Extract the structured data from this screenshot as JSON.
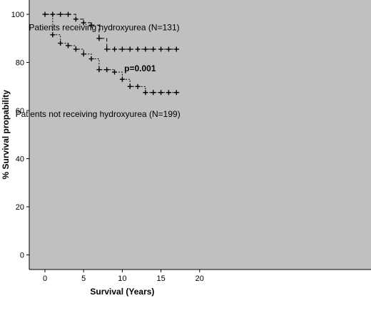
{
  "chart_data": {
    "type": "line",
    "subtype": "kaplan-meier step",
    "xlabel": "Survival (Years)",
    "ylabel": "% Survival propability",
    "xlim": [
      0,
      20
    ],
    "ylim": [
      0,
      100
    ],
    "xticks": [
      0,
      5,
      10,
      15,
      20
    ],
    "yticks": [
      0,
      20,
      40,
      60,
      80,
      100
    ],
    "grid": false,
    "background_color": "#c0c0c0",
    "line_color": "#000000",
    "annotations": [
      {
        "text": "Patients receiving hydroxyurea (N=131)",
        "x": 17.4,
        "y": 94.5,
        "bold": false,
        "anchor": "end"
      },
      {
        "text": "p=0.001",
        "x": 12.3,
        "y": 77.5,
        "bold": true,
        "anchor": "middle"
      },
      {
        "text": "Patients not receiving hydroxyurea (N=199)",
        "x": 17.5,
        "y": 58.5,
        "bold": false,
        "anchor": "end"
      }
    ],
    "series": [
      {
        "name": "Patients receiving hydroxyurea (N=131)",
        "line_style": "dashed",
        "steps": [
          [
            0,
            100
          ],
          [
            4,
            98
          ],
          [
            5,
            96.5
          ],
          [
            6,
            95.5
          ],
          [
            7,
            90
          ],
          [
            8,
            85.5
          ],
          [
            17.5,
            85.5
          ]
        ],
        "censored": [
          [
            0,
            100
          ],
          [
            1,
            100
          ],
          [
            2,
            100
          ],
          [
            3,
            100
          ],
          [
            4,
            98
          ],
          [
            5,
            96.5
          ],
          [
            6,
            95.5
          ],
          [
            7,
            90
          ],
          [
            8,
            85.5
          ],
          [
            9,
            85.5
          ],
          [
            10,
            85.5
          ],
          [
            11,
            85.5
          ],
          [
            12,
            85.5
          ],
          [
            13,
            85.5
          ],
          [
            14,
            85.5
          ],
          [
            15,
            85.5
          ],
          [
            16,
            85.5
          ],
          [
            17,
            85.5
          ]
        ]
      },
      {
        "name": "Patients not receiving hydroxyurea (N=199)",
        "line_style": "dotted",
        "steps": [
          [
            0,
            100
          ],
          [
            1,
            91.5
          ],
          [
            2,
            88
          ],
          [
            3,
            87
          ],
          [
            4,
            85.5
          ],
          [
            5,
            83.5
          ],
          [
            6,
            81.5
          ],
          [
            7,
            77
          ],
          [
            9,
            76
          ],
          [
            10,
            73
          ],
          [
            11,
            70
          ],
          [
            13,
            67.5
          ],
          [
            17.5,
            67.5
          ]
        ],
        "censored": [
          [
            1,
            91.5
          ],
          [
            2,
            88
          ],
          [
            3,
            87
          ],
          [
            4,
            85.5
          ],
          [
            5,
            83.5
          ],
          [
            6,
            81.5
          ],
          [
            7,
            77
          ],
          [
            8,
            77
          ],
          [
            9,
            76
          ],
          [
            10,
            73
          ],
          [
            11,
            70
          ],
          [
            12,
            70
          ],
          [
            13,
            67.5
          ],
          [
            14,
            67.5
          ],
          [
            15,
            67.5
          ],
          [
            16,
            67.5
          ],
          [
            17,
            67.5
          ]
        ]
      }
    ]
  }
}
